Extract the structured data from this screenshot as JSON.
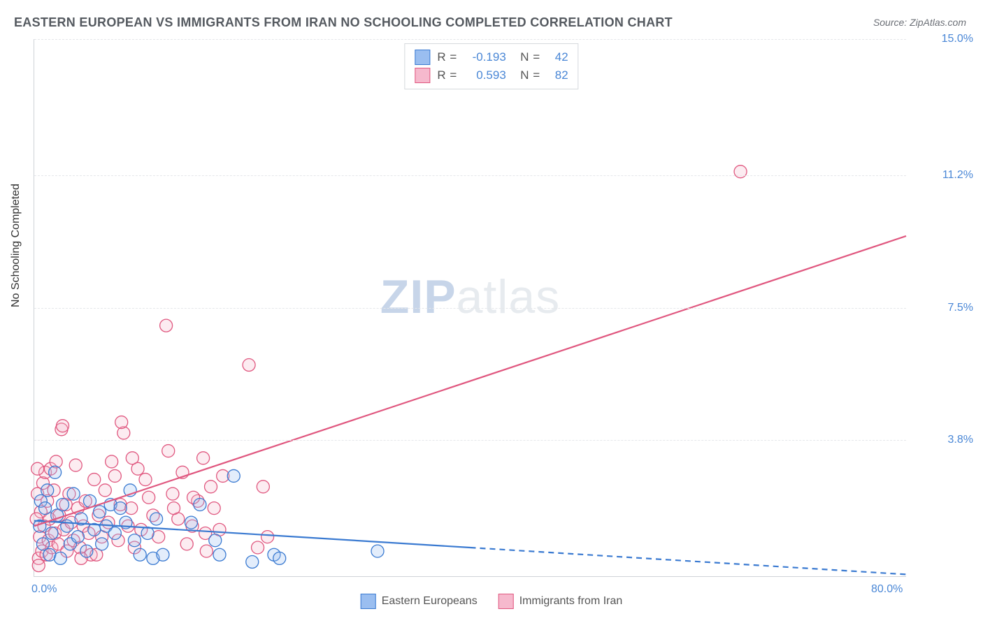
{
  "title": "EASTERN EUROPEAN VS IMMIGRANTS FROM IRAN NO SCHOOLING COMPLETED CORRELATION CHART",
  "source_label": "Source: ZipAtlas.com",
  "watermark": {
    "part1": "ZIP",
    "part2": "atlas"
  },
  "y_axis_title": "No Schooling Completed",
  "chart": {
    "type": "scatter-with-regression",
    "background_color": "#ffffff",
    "grid_color": "#e5e7ea",
    "axis_color": "#cfd3d8",
    "tick_label_color": "#4a87d6",
    "xlim": [
      0,
      80
    ],
    "ylim": [
      0,
      15
    ],
    "xticks": [
      {
        "value": 0,
        "label": "0.0%"
      },
      {
        "value": 80,
        "label": "80.0%"
      }
    ],
    "yticks": [
      {
        "value": 3.8,
        "label": "3.8%"
      },
      {
        "value": 7.5,
        "label": "7.5%"
      },
      {
        "value": 11.2,
        "label": "11.2%"
      },
      {
        "value": 15.0,
        "label": "15.0%"
      }
    ],
    "marker_radius": 9,
    "marker_stroke_width": 1.3,
    "marker_fill_opacity": 0.28,
    "line_width": 2.2,
    "series": [
      {
        "id": "eastern_europeans",
        "label": "Eastern Europeans",
        "color_stroke": "#3a7ad1",
        "color_fill": "#9abef0",
        "correlation_r": "-0.193",
        "n": "42",
        "trend": {
          "x1": 0,
          "y1": 1.55,
          "x2": 80,
          "y2": 0.05,
          "solid_until_x": 40
        },
        "points": [
          [
            0.5,
            1.4
          ],
          [
            0.6,
            2.1
          ],
          [
            0.8,
            0.9
          ],
          [
            1.0,
            1.9
          ],
          [
            1.2,
            2.4
          ],
          [
            1.4,
            0.6
          ],
          [
            1.6,
            1.2
          ],
          [
            1.9,
            2.9
          ],
          [
            2.1,
            1.7
          ],
          [
            2.4,
            0.5
          ],
          [
            2.6,
            2.0
          ],
          [
            3.0,
            1.4
          ],
          [
            3.3,
            0.9
          ],
          [
            3.6,
            2.3
          ],
          [
            4.0,
            1.1
          ],
          [
            4.3,
            1.6
          ],
          [
            4.8,
            0.7
          ],
          [
            5.1,
            2.1
          ],
          [
            5.5,
            1.3
          ],
          [
            6.0,
            1.8
          ],
          [
            6.2,
            0.9
          ],
          [
            6.6,
            1.4
          ],
          [
            7.0,
            2.0
          ],
          [
            7.4,
            1.2
          ],
          [
            7.9,
            1.9
          ],
          [
            8.4,
            1.5
          ],
          [
            8.8,
            2.4
          ],
          [
            9.2,
            1.0
          ],
          [
            9.7,
            0.6
          ],
          [
            10.4,
            1.2
          ],
          [
            10.9,
            0.5
          ],
          [
            11.2,
            1.6
          ],
          [
            11.8,
            0.6
          ],
          [
            14.4,
            1.5
          ],
          [
            15.2,
            2.0
          ],
          [
            16.6,
            1.0
          ],
          [
            17.0,
            0.6
          ],
          [
            18.3,
            2.8
          ],
          [
            20.0,
            0.4
          ],
          [
            22.0,
            0.6
          ],
          [
            22.5,
            0.5
          ],
          [
            31.5,
            0.7
          ]
        ]
      },
      {
        "id": "immigrants_iran",
        "label": "Immigrants from Iran",
        "color_stroke": "#e0577f",
        "color_fill": "#f6b9cd",
        "correlation_r": "0.593",
        "n": "82",
        "trend": {
          "x1": 0,
          "y1": 1.4,
          "x2": 80,
          "y2": 9.5,
          "solid_until_x": 80
        },
        "points": [
          [
            0.4,
            0.5
          ],
          [
            0.5,
            1.1
          ],
          [
            0.6,
            1.8
          ],
          [
            0.7,
            0.7
          ],
          [
            0.8,
            2.6
          ],
          [
            0.9,
            1.4
          ],
          [
            1.0,
            2.9
          ],
          [
            1.1,
            0.6
          ],
          [
            1.2,
            2.1
          ],
          [
            1.3,
            1.0
          ],
          [
            1.4,
            1.6
          ],
          [
            1.5,
            3.0
          ],
          [
            1.6,
            0.8
          ],
          [
            1.8,
            2.4
          ],
          [
            1.9,
            1.2
          ],
          [
            2.0,
            3.2
          ],
          [
            2.2,
            0.9
          ],
          [
            2.3,
            1.7
          ],
          [
            2.5,
            4.1
          ],
          [
            2.7,
            1.3
          ],
          [
            2.9,
            2.0
          ],
          [
            3.0,
            0.7
          ],
          [
            3.2,
            2.3
          ],
          [
            3.4,
            1.5
          ],
          [
            3.6,
            1.0
          ],
          [
            3.8,
            3.1
          ],
          [
            4.0,
            1.9
          ],
          [
            4.2,
            0.8
          ],
          [
            4.5,
            1.4
          ],
          [
            4.7,
            2.1
          ],
          [
            5.0,
            1.2
          ],
          [
            5.2,
            0.6
          ],
          [
            5.5,
            2.7
          ],
          [
            5.9,
            1.7
          ],
          [
            6.2,
            1.1
          ],
          [
            6.5,
            2.4
          ],
          [
            6.8,
            1.5
          ],
          [
            7.1,
            3.2
          ],
          [
            7.4,
            2.8
          ],
          [
            7.7,
            1.0
          ],
          [
            7.9,
            2.0
          ],
          [
            8.2,
            4.0
          ],
          [
            8.6,
            1.4
          ],
          [
            8.9,
            1.9
          ],
          [
            9.2,
            0.8
          ],
          [
            9.5,
            3.0
          ],
          [
            9.8,
            1.3
          ],
          [
            10.2,
            2.7
          ],
          [
            10.5,
            2.2
          ],
          [
            10.9,
            1.7
          ],
          [
            11.4,
            1.1
          ],
          [
            12.1,
            7.0
          ],
          [
            12.3,
            3.5
          ],
          [
            12.7,
            2.3
          ],
          [
            13.2,
            1.6
          ],
          [
            13.6,
            2.9
          ],
          [
            14.0,
            0.9
          ],
          [
            14.5,
            1.4
          ],
          [
            15.0,
            2.1
          ],
          [
            15.5,
            3.3
          ],
          [
            15.8,
            0.7
          ],
          [
            16.2,
            2.5
          ],
          [
            16.5,
            1.9
          ],
          [
            17.0,
            1.3
          ],
          [
            17.3,
            2.8
          ],
          [
            19.7,
            5.9
          ],
          [
            20.5,
            0.8
          ],
          [
            21.0,
            2.5
          ],
          [
            21.4,
            1.1
          ],
          [
            64.8,
            11.3
          ],
          [
            2.6,
            4.2
          ],
          [
            8.0,
            4.3
          ],
          [
            0.3,
            2.3
          ],
          [
            0.2,
            1.6
          ],
          [
            0.3,
            3.0
          ],
          [
            0.4,
            0.3
          ],
          [
            4.3,
            0.5
          ],
          [
            5.7,
            0.6
          ],
          [
            12.8,
            1.9
          ],
          [
            15.7,
            1.2
          ],
          [
            14.6,
            2.2
          ],
          [
            9.0,
            3.3
          ]
        ]
      }
    ]
  },
  "legend_bottom": {
    "items": [
      {
        "label": "Eastern Europeans",
        "stroke": "#3a7ad1",
        "fill": "#9abef0"
      },
      {
        "label": "Immigrants from Iran",
        "stroke": "#e0577f",
        "fill": "#f6b9cd"
      }
    ]
  }
}
